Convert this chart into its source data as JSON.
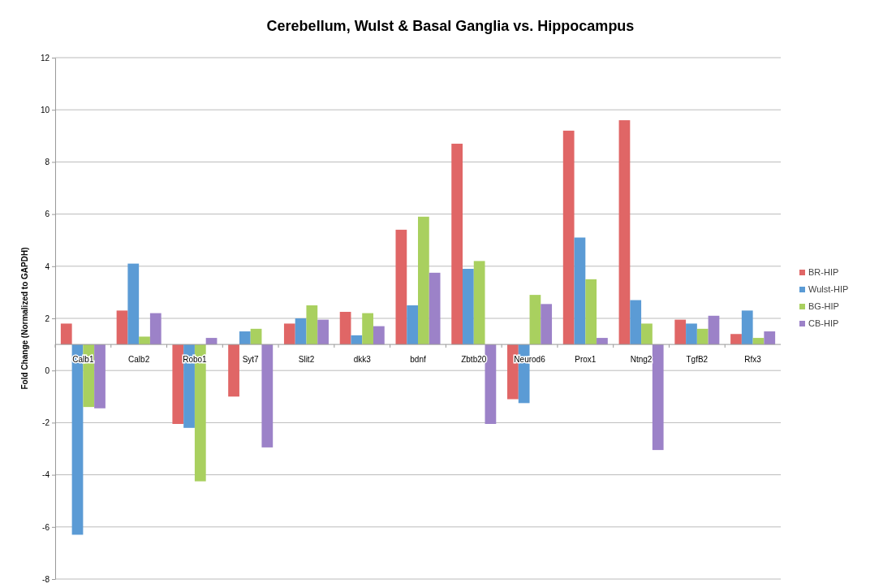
{
  "chart_data": {
    "type": "bar",
    "title": "Cerebellum, Wulst & Basal Ganglia vs. Hippocampus",
    "ylabel": "Fold Change (Normalized to GAPDH)",
    "categories": [
      "Calb1",
      "Calb2",
      "Robo1",
      "Syt7",
      "Slit2",
      "dkk3",
      "bdnf",
      "Zbtb20",
      "Neurod6",
      "Prox1",
      "Ntng2",
      "TgfB2",
      "Rfx3"
    ],
    "series": [
      {
        "name": "BR-HIP",
        "color": "#e06666",
        "base": [
          1,
          1,
          1,
          1,
          1,
          1,
          1,
          1,
          1,
          1,
          1,
          1,
          1
        ],
        "values": [
          0.8,
          1.3,
          -3.05,
          -2.0,
          0.8,
          1.25,
          4.4,
          7.7,
          -2.1,
          8.2,
          8.6,
          0.95,
          0.4
        ]
      },
      {
        "name": "Wulst-HIP",
        "color": "#5b9bd5",
        "base": [
          1,
          1,
          1,
          1,
          1,
          1,
          1,
          1,
          1,
          1,
          1,
          1,
          1
        ],
        "values": [
          -7.3,
          3.1,
          -3.2,
          0.5,
          1.0,
          0.35,
          1.5,
          2.9,
          -2.25,
          4.1,
          1.7,
          0.8,
          1.3
        ]
      },
      {
        "name": "BG-HIP",
        "color": "#a9d05f",
        "base": [
          1,
          1,
          1,
          1,
          1,
          1,
          1,
          1,
          1,
          1,
          1,
          1,
          1
        ],
        "values": [
          -2.4,
          0.3,
          -5.25,
          0.6,
          1.5,
          1.2,
          4.9,
          3.2,
          1.9,
          2.5,
          0.8,
          0.6,
          0.25
        ]
      },
      {
        "name": "CB-HIP",
        "color": "#9c82c8",
        "base": [
          1,
          1,
          1,
          1,
          1,
          1,
          1,
          1,
          1,
          1,
          1,
          1,
          1
        ],
        "values": [
          -2.45,
          1.2,
          0.25,
          -3.95,
          0.95,
          0.7,
          2.75,
          -3.05,
          1.55,
          0.25,
          -4.05,
          1.1,
          0.5
        ]
      }
    ],
    "ylim": [
      -8,
      12
    ],
    "yticks": [
      -8,
      -6,
      -4,
      -2,
      0,
      2,
      4,
      6,
      8,
      10,
      12
    ],
    "grid": "y",
    "legend": "right"
  }
}
